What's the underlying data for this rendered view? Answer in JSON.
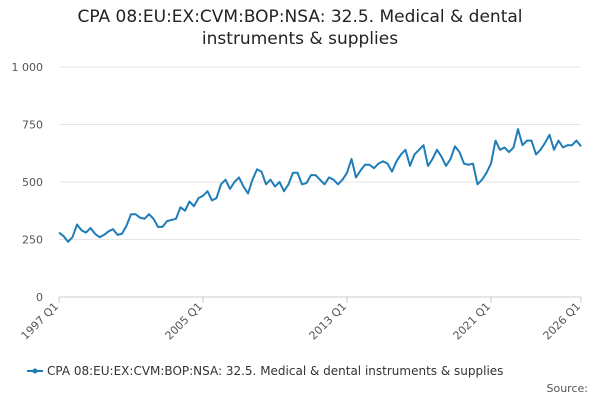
{
  "chart_data": {
    "type": "line",
    "title": "CPA 08:EU:EX:CVM:BOP:NSA: 32.5. Medical & dental instruments & supplies",
    "categories": [
      "1997 Q1",
      null,
      null,
      null,
      null,
      null,
      null,
      null,
      null,
      null,
      null,
      null,
      null,
      null,
      null,
      null,
      null,
      null,
      null,
      null,
      null,
      null,
      null,
      null,
      null,
      null,
      null,
      null,
      null,
      null,
      null,
      null,
      "2005 Q1",
      null,
      null,
      null,
      null,
      null,
      null,
      null,
      null,
      null,
      null,
      null,
      null,
      null,
      null,
      null,
      null,
      null,
      null,
      null,
      null,
      null,
      null,
      null,
      null,
      null,
      null,
      null,
      null,
      null,
      null,
      null,
      "2013 Q1",
      null,
      null,
      null,
      null,
      null,
      null,
      null,
      null,
      null,
      null,
      null,
      null,
      null,
      null,
      null,
      null,
      null,
      null,
      null,
      null,
      null,
      null,
      null,
      null,
      null,
      null,
      null,
      null,
      null,
      null,
      null,
      "2021 Q1",
      null,
      null,
      null,
      null,
      null,
      null,
      null,
      null,
      null,
      null,
      null,
      null,
      null,
      null,
      null,
      null,
      null,
      null,
      null,
      "2026 Q1"
    ],
    "series": [
      {
        "name": "CPA 08:EU:EX:CVM:BOP:NSA: 32.5. Medical & dental instruments & supplies",
        "color": "#1f7db8",
        "values": [
          280,
          265,
          240,
          260,
          315,
          290,
          280,
          300,
          275,
          260,
          270,
          285,
          295,
          270,
          275,
          310,
          360,
          360,
          345,
          340,
          360,
          340,
          305,
          305,
          330,
          335,
          340,
          390,
          375,
          415,
          395,
          430,
          440,
          460,
          420,
          430,
          490,
          510,
          470,
          500,
          520,
          480,
          450,
          510,
          555,
          545,
          490,
          510,
          480,
          500,
          460,
          490,
          540,
          540,
          490,
          495,
          530,
          530,
          510,
          490,
          520,
          510,
          490,
          510,
          540,
          600,
          520,
          550,
          575,
          575,
          560,
          580,
          590,
          580,
          545,
          590,
          620,
          640,
          570,
          620,
          640,
          660,
          570,
          600,
          640,
          610,
          570,
          600,
          655,
          630,
          580,
          575,
          580,
          490,
          510,
          540,
          580,
          680,
          640,
          650,
          630,
          650,
          730,
          660,
          680,
          680,
          620,
          640,
          670,
          705,
          640,
          680,
          650,
          660,
          660,
          680,
          655
        ]
      }
    ],
    "ylim": [
      0,
      1000
    ],
    "yticks": [
      0,
      250,
      500,
      750,
      {
        "value": 1000,
        "label": "1 000"
      }
    ],
    "grid": true,
    "source_label": "Source:"
  }
}
